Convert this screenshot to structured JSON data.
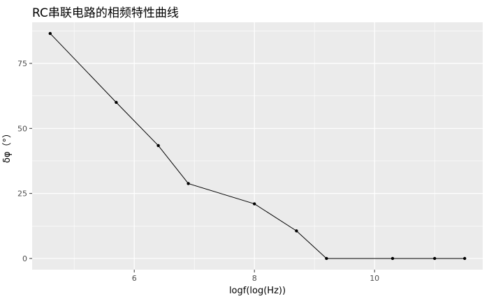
{
  "chart_data": {
    "type": "line",
    "title": "RC串联电路的相频特性曲线",
    "xlabel": "logf(log(Hz))",
    "ylabel": "δφ（°）",
    "x": [
      4.6,
      5.7,
      6.4,
      6.9,
      8.0,
      8.7,
      9.2,
      10.3,
      11.0,
      11.5
    ],
    "y": [
      86.5,
      60.0,
      43.4,
      28.8,
      21.0,
      10.6,
      0.0,
      0.0,
      0.0,
      0.0
    ],
    "x_ticks": [
      6,
      8,
      10
    ],
    "y_ticks": [
      0,
      25,
      50,
      75
    ],
    "xlim": [
      4.3,
      11.8
    ],
    "ylim": [
      -4.3,
      90.8
    ],
    "grid": true,
    "legend": "none",
    "colors": {
      "panel": "#ebebeb",
      "grid_major": "#ffffff",
      "line": "#000000",
      "point": "#000000"
    }
  }
}
